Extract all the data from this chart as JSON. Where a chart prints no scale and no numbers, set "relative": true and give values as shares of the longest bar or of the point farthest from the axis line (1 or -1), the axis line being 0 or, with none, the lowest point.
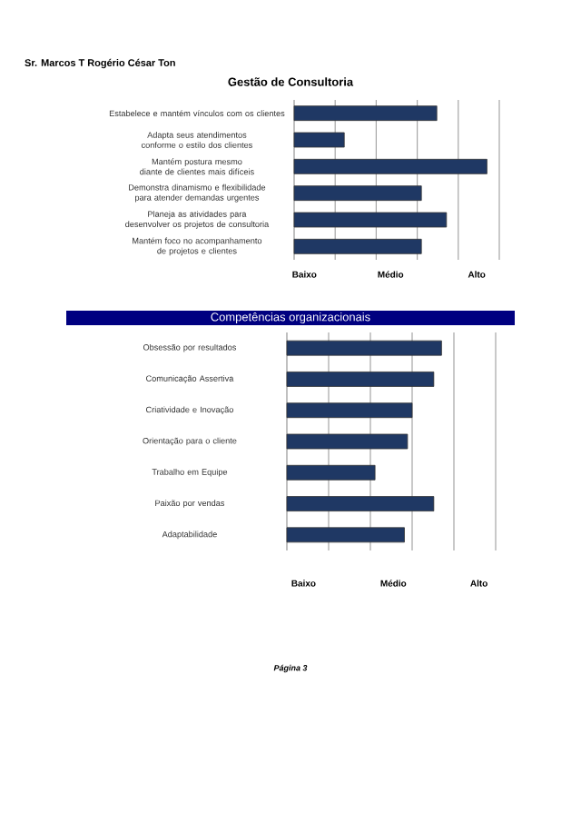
{
  "chart_data": [
    {
      "type": "bar",
      "orientation": "horizontal",
      "relative": true,
      "title": "Gestão de Consultoria",
      "annotations": [
        "Sr. Marcos T Rogério César Ton",
        "Baixo",
        "Médio",
        "Alto"
      ],
      "categories": [
        "Estabelece e mantém vínculos com os clientes",
        "Adapta seus atendimentos conforme o estilo dos clientes",
        "Mantém postura mesmo diante de clientes mais difíceis",
        "Demonstra dinamismo e flexibilidade para atender demandas urgentes",
        "Planeja as atividades para desenvolver os projetos de consultoria",
        "Mantém foco no acompanhamento de projetos e clientes"
      ],
      "values": [
        0.74,
        0.26,
        1,
        0.66,
        0.79,
        0.66
      ],
      "color": "#1f3864",
      "grid": "x"
    },
    {
      "type": "bar",
      "orientation": "horizontal",
      "relative": true,
      "title": "Competências organizacionais",
      "annotations": [
        "Baixo",
        "Médio",
        "Alto",
        "Página 3"
      ],
      "categories": [
        "Obsessão por resultados",
        "Comunicação Assertiva",
        "Criatividade e Inovação",
        "Orientação para o cliente",
        "Trabalho em Equipe",
        "Paixão por vendas",
        "Adaptabilidade"
      ],
      "values": [
        1,
        0.95,
        0.81,
        0.78,
        0.57,
        0.95,
        0.76
      ],
      "color": "#1f3864",
      "grid": "x"
    }
  ]
}
